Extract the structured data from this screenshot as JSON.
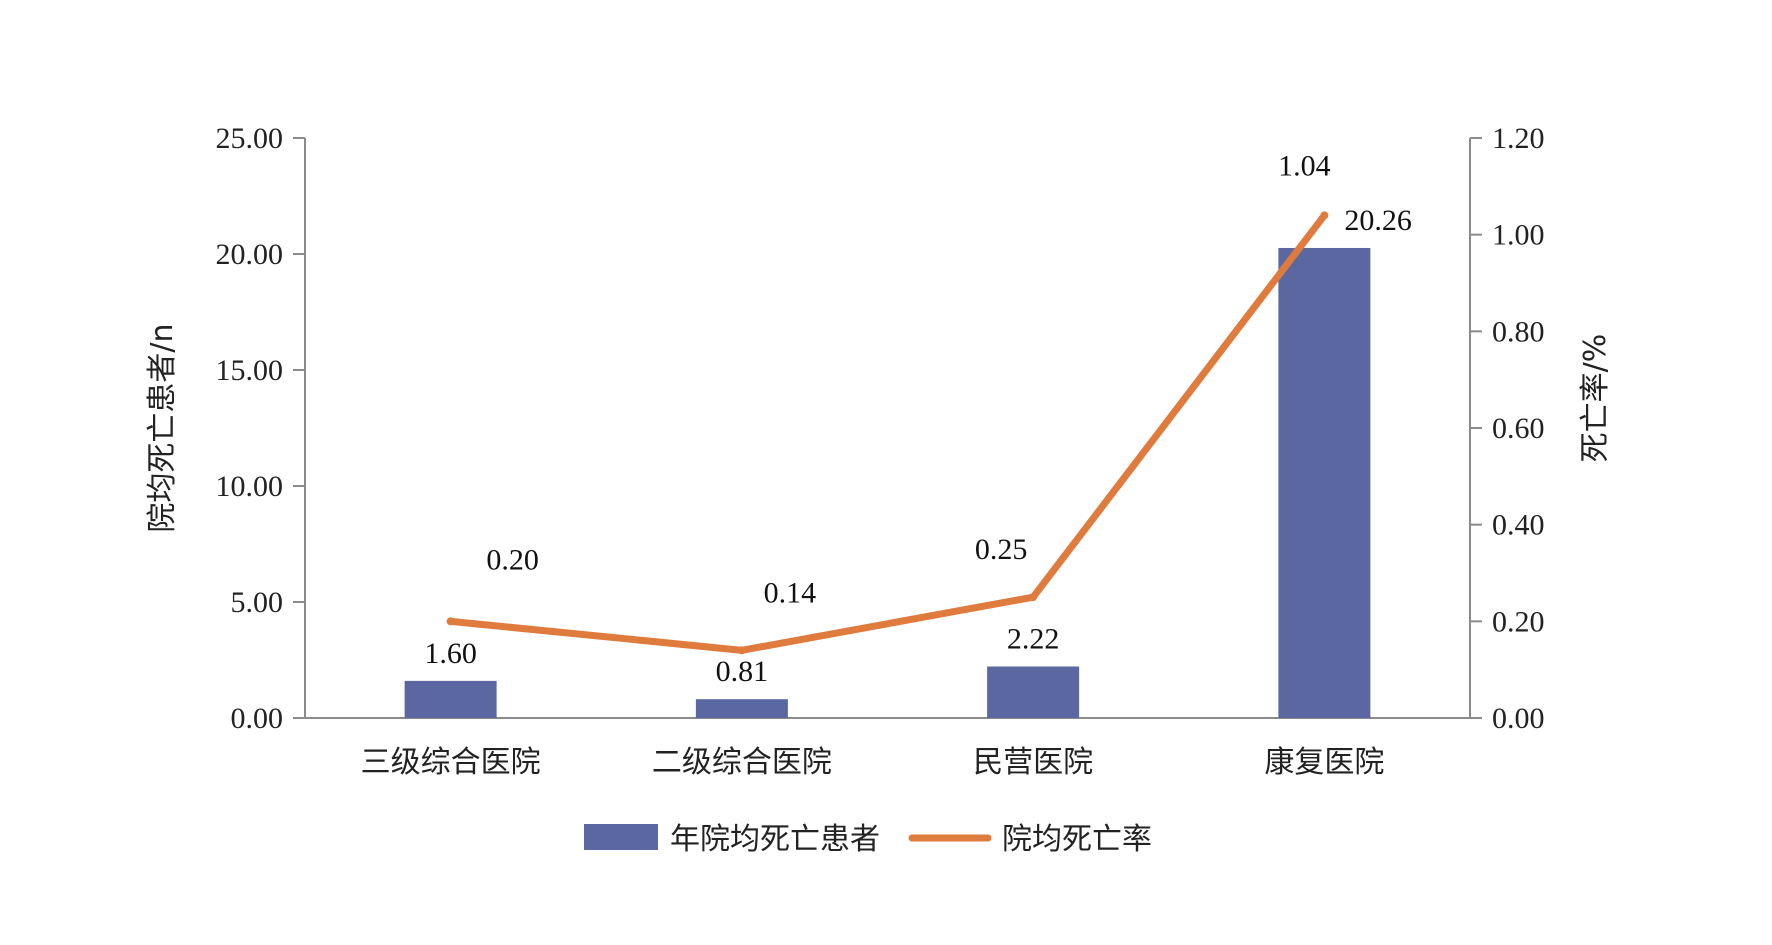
{
  "chart_data": {
    "type": "bar",
    "categories": [
      "三级综合医院",
      "二级综合医院",
      "民营医院",
      "康复医院"
    ],
    "series": [
      {
        "name": "年院均死亡患者",
        "type": "bar",
        "axis": "left",
        "values": [
          1.6,
          0.81,
          2.22,
          20.26
        ],
        "labels": [
          "1.60",
          "0.81",
          "2.22",
          "20.26"
        ],
        "color": "#5B67A1"
      },
      {
        "name": "院均死亡率",
        "type": "line",
        "axis": "right",
        "values": [
          0.2,
          0.14,
          0.25,
          1.04
        ],
        "labels": [
          "0.20",
          "0.14",
          "0.25",
          "1.04"
        ],
        "color": "#E07B3E"
      }
    ],
    "y_left": {
      "label": "院均死亡患者/n",
      "ylim": [
        0,
        25
      ],
      "ticks": [
        "0.00",
        "5.00",
        "10.00",
        "15.00",
        "20.00",
        "25.00"
      ]
    },
    "y_right": {
      "label": "死亡率/%",
      "ylim": [
        0,
        1.2
      ],
      "ticks": [
        "0.00",
        "0.20",
        "0.40",
        "0.60",
        "0.80",
        "1.00",
        "1.20"
      ]
    },
    "grid": false,
    "legend": "bottom-center"
  }
}
